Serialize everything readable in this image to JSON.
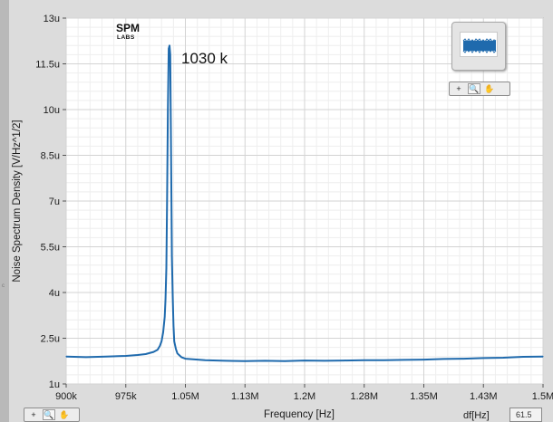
{
  "colors": {
    "trace": "#1f6aad",
    "plot_background": "#ffffff",
    "panel_background": "#dcdcdc",
    "grid_major": "#d3d3d3",
    "grid_minor": "#eeeeee"
  },
  "logo": {
    "line1": "SPM",
    "line2": "LABS"
  },
  "annotation": {
    "peak_label": "1030 k"
  },
  "chart_data": {
    "type": "line",
    "title": "",
    "xlabel": "Frequency [Hz]",
    "ylabel": "Noise Spectrum Density [V/Hz^1/2]",
    "xlim": [
      900000,
      1500000
    ],
    "ylim": [
      1e-06,
      1.3e-05
    ],
    "grid": true,
    "legend": "top-right",
    "x_ticks": [
      900000,
      975000,
      1050000,
      1125000,
      1200000,
      1275000,
      1350000,
      1425000,
      1500000
    ],
    "x_tick_labels": [
      "900k",
      "975k",
      "1.05M",
      "1.13M",
      "1.2M",
      "1.28M",
      "1.35M",
      "1.43M",
      "1.5M"
    ],
    "y_ticks": [
      1e-06,
      2.5e-06,
      4e-06,
      5.5e-06,
      7e-06,
      8.5e-06,
      1e-05,
      1.15e-05,
      1.3e-05
    ],
    "y_tick_labels": [
      "1u",
      "2.5u",
      "4u",
      "5.5u",
      "7u",
      "8.5u",
      "10u",
      "11.5u",
      "13u"
    ],
    "series": [
      {
        "x": [
          900000,
          925000,
          950000,
          975000,
          990000,
          1000000,
          1010000,
          1015000,
          1018000,
          1020000,
          1022000,
          1024000,
          1025000,
          1026000,
          1027000,
          1028000,
          1029000,
          1030000,
          1031000,
          1032000,
          1033000,
          1034000,
          1035000,
          1036000,
          1038000,
          1040000,
          1045000,
          1050000,
          1075000,
          1100000,
          1125000,
          1150000,
          1175000,
          1200000,
          1225000,
          1250000,
          1275000,
          1300000,
          1325000,
          1350000,
          1375000,
          1400000,
          1425000,
          1450000,
          1475000,
          1500000
        ],
        "values": [
          1.9e-06,
          1.88e-06,
          1.9e-06,
          1.92e-06,
          1.95e-06,
          1.98e-06,
          2.05e-06,
          2.12e-06,
          2.25e-06,
          2.4e-06,
          2.7e-06,
          3.2e-06,
          3.8e-06,
          4.8e-06,
          7e-06,
          1e-05,
          1.2e-05,
          1.21e-05,
          1.18e-05,
          8.6e-06,
          5.2e-06,
          3.9e-06,
          2.9e-06,
          2.4e-06,
          2.15e-06,
          2e-06,
          1.88e-06,
          1.83e-06,
          1.78e-06,
          1.76e-06,
          1.75e-06,
          1.76e-06,
          1.75e-06,
          1.77e-06,
          1.76e-06,
          1.77e-06,
          1.78e-06,
          1.78e-06,
          1.79e-06,
          1.8e-06,
          1.82e-06,
          1.83e-06,
          1.85e-06,
          1.86e-06,
          1.89e-06,
          1.9e-06
        ]
      }
    ]
  },
  "palettes": {
    "top": [
      {
        "icon": "crosshair-icon",
        "glyph": "+"
      },
      {
        "icon": "zoom-icon",
        "glyph": "🔍"
      },
      {
        "icon": "pan-hand-icon",
        "glyph": "✋"
      }
    ],
    "bottom": [
      {
        "icon": "crosshair-icon",
        "glyph": "+"
      },
      {
        "icon": "zoom-icon",
        "glyph": "🔍"
      },
      {
        "icon": "pan-hand-icon",
        "glyph": "✋"
      }
    ]
  },
  "df": {
    "label": "df[Hz]",
    "value": "61.5"
  }
}
